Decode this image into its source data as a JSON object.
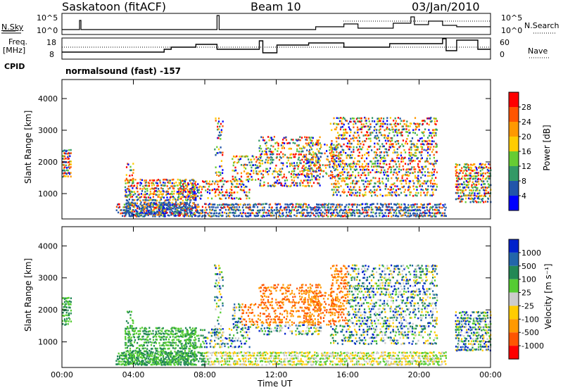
{
  "header": {
    "site": "Saskatoon (fitACF)",
    "beam": "Beam 10",
    "date": "03/Jan/2010"
  },
  "strip_panels": {
    "nsky_label": "N.Sky",
    "nsky_ticks": [
      "10^5",
      "10^0"
    ],
    "nsearch_label": "N.Search",
    "nsearch_ticks": [
      "10^5",
      "10^0"
    ],
    "freq_label_1": "Freq.",
    "freq_label_2": "[MHz]",
    "freq_ticks": [
      "18",
      "8"
    ],
    "nave_label": "Nave",
    "nave_ticks": [
      "60",
      "0"
    ],
    "cpid_label": "CPID",
    "cpid_text": "normalsound (fast) -157"
  },
  "chart_data": [
    {
      "type": "heatmap",
      "name": "power-panel",
      "ylabel": "Slant Range [km]",
      "xlabel": "Time UT",
      "ylim": [
        200,
        4600
      ],
      "yticks": [
        "4000",
        "3000",
        "2000",
        "1000"
      ],
      "x_ticks": [
        "00:00",
        "04:00",
        "08:00",
        "12:00",
        "16:00",
        "20:00",
        "00:00"
      ],
      "colorbar_label": "Power [dB]",
      "colorbar_ticks": [
        "28",
        "24",
        "20",
        "16",
        "12",
        "8",
        "4"
      ],
      "colors": [
        "#ff0000",
        "#ff5500",
        "#ff9900",
        "#ffcc00",
        "#66cc33",
        "#339966",
        "#2255aa",
        "#0000ff"
      ]
    },
    {
      "type": "heatmap",
      "name": "velocity-panel",
      "ylabel": "Slant Range [km]",
      "xlabel": "Time UT",
      "ylim": [
        200,
        4600
      ],
      "yticks": [
        "4000",
        "3000",
        "2000",
        "1000"
      ],
      "x_ticks": [
        "00:00",
        "04:00",
        "08:00",
        "12:00",
        "16:00",
        "20:00",
        "00:00"
      ],
      "colorbar_label": "Velocity [m s⁻¹]",
      "colorbar_ticks": [
        "1000",
        "500",
        "100",
        "25",
        "-25",
        "-100",
        "-500",
        "-1000"
      ],
      "colors": [
        "#0022cc",
        "#2266aa",
        "#228855",
        "#55cc33",
        "#cccccc",
        "#ffcc00",
        "#ff9900",
        "#ff5500",
        "#ff0000"
      ]
    }
  ]
}
